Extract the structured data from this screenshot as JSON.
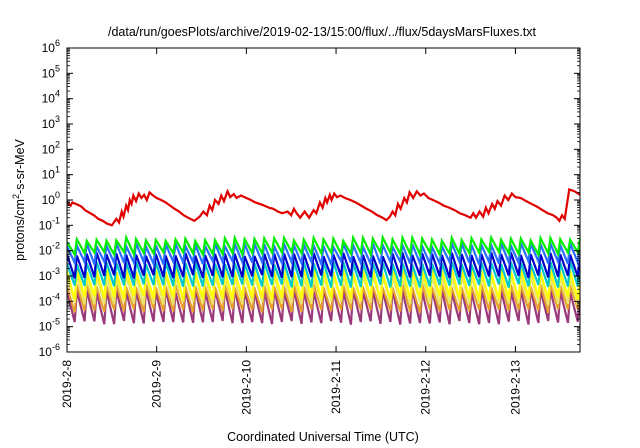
{
  "chart_data": {
    "type": "line",
    "title": "/data/run/goesPlots/archive/2019-02-13/15:00/flux/../flux/5daysMarsFluxes.txt",
    "xlabel": "Coordinated Universal Time (UTC)",
    "ylabel": "protons/cm²-s-sr-MeV",
    "ylabel_parts": {
      "base": "protons/cm",
      "sup": "2",
      "rest": "-s-sr-MeV"
    },
    "yscale": "log",
    "ylim": [
      1e-06,
      1000000.0
    ],
    "ytick_base": "10",
    "ytick_exponents": [
      "-6",
      "-5",
      "-4",
      "-3",
      "-2",
      "-1",
      "0",
      "1",
      "2",
      "3",
      "4",
      "5",
      "6"
    ],
    "x_unit": "days",
    "xlim": [
      0,
      5.72
    ],
    "xticks": [
      {
        "x": 0,
        "label": "2019-2-8"
      },
      {
        "x": 1,
        "label": "2019-2-9"
      },
      {
        "x": 2,
        "label": "2019-2-10"
      },
      {
        "x": 3,
        "label": "2019-2-11"
      },
      {
        "x": 4,
        "label": "2019-2-12"
      },
      {
        "x": 5,
        "label": "2019-2-13"
      }
    ],
    "grid": false,
    "series": [
      {
        "color": "#e00000",
        "width": 2.2,
        "x": [
          0,
          0.04,
          0.06,
          0.12,
          0.16,
          0.2,
          0.26,
          0.3,
          0.35,
          0.4,
          0.44,
          0.5,
          0.55,
          0.58,
          0.61,
          0.63,
          0.66,
          0.68,
          0.7,
          0.72,
          0.74,
          0.77,
          0.8,
          0.83,
          0.86,
          0.89,
          0.92,
          0.96,
          1.0,
          1.05,
          1.1,
          1.15,
          1.2,
          1.25,
          1.3,
          1.35,
          1.42,
          1.48,
          1.52,
          1.56,
          1.59,
          1.62,
          1.65,
          1.69,
          1.72,
          1.75,
          1.79,
          1.82,
          1.86,
          1.89,
          1.94,
          2.0,
          2.05,
          2.1,
          2.15,
          2.2,
          2.25,
          2.3,
          2.35,
          2.4,
          2.46,
          2.5,
          2.53,
          2.56,
          2.6,
          2.65,
          2.7,
          2.75,
          2.78,
          2.82,
          2.85,
          2.88,
          2.9,
          2.93,
          2.95,
          2.98,
          3.01,
          3.05,
          3.1,
          3.16,
          3.22,
          3.28,
          3.34,
          3.4,
          3.46,
          3.52,
          3.56,
          3.6,
          3.63,
          3.66,
          3.69,
          3.72,
          3.76,
          3.79,
          3.82,
          3.86,
          3.9,
          3.94,
          3.98,
          4.03,
          4.08,
          4.14,
          4.2,
          4.26,
          4.32,
          4.38,
          4.44,
          4.5,
          4.53,
          4.56,
          4.6,
          4.64,
          4.67,
          4.7,
          4.74,
          4.77,
          4.8,
          4.84,
          4.88,
          4.92,
          4.96,
          5.0,
          5.06,
          5.12,
          5.18,
          5.24,
          5.3,
          5.36,
          5.42,
          5.46,
          5.49,
          5.52,
          5.55,
          5.6,
          5.66,
          5.72
        ],
        "y": [
          0.8,
          0.6,
          0.8,
          0.65,
          0.55,
          0.4,
          0.3,
          0.25,
          0.18,
          0.15,
          0.12,
          0.1,
          0.18,
          0.13,
          0.35,
          0.22,
          0.6,
          0.4,
          1.0,
          0.7,
          1.5,
          0.9,
          1.8,
          1.2,
          1.6,
          1.0,
          2.0,
          1.5,
          1.2,
          1.0,
          0.8,
          0.6,
          0.45,
          0.35,
          0.25,
          0.2,
          0.15,
          0.22,
          0.35,
          0.25,
          0.6,
          0.4,
          1.0,
          0.7,
          1.5,
          0.9,
          2.2,
          1.3,
          1.7,
          1.2,
          1.5,
          1.2,
          1.0,
          0.8,
          0.7,
          0.6,
          0.5,
          0.45,
          0.35,
          0.3,
          0.35,
          0.25,
          0.45,
          0.3,
          0.2,
          0.35,
          0.2,
          0.4,
          0.3,
          0.8,
          0.5,
          1.2,
          0.8,
          1.6,
          1.0,
          1.8,
          1.3,
          1.5,
          1.2,
          1.0,
          0.8,
          0.6,
          0.45,
          0.35,
          0.25,
          0.2,
          0.16,
          0.22,
          0.35,
          0.25,
          0.7,
          0.45,
          1.2,
          0.8,
          2.0,
          1.2,
          2.2,
          1.5,
          1.8,
          1.2,
          1.0,
          0.8,
          0.6,
          0.5,
          0.4,
          0.3,
          0.25,
          0.2,
          0.3,
          0.2,
          0.35,
          0.22,
          0.5,
          0.3,
          0.7,
          0.45,
          0.9,
          0.6,
          1.5,
          1.0,
          1.8,
          1.3,
          1.2,
          0.9,
          0.7,
          0.55,
          0.4,
          0.3,
          0.25,
          0.2,
          0.15,
          0.25,
          0.18,
          2.6,
          2.2,
          1.6
        ]
      },
      {
        "color": "#00ee00",
        "width": 2.2,
        "cycles": 52,
        "start": 0.022,
        "peak_low": 0.024,
        "peak_high": 0.033,
        "trough_low": 0.007,
        "trough_high": 0.009
      },
      {
        "color": "#2a6fff",
        "width": 2.2,
        "cycles": 52,
        "start": 0.015,
        "peak_low": 0.014,
        "peak_high": 0.02,
        "trough_low": 0.0028,
        "trough_high": 0.0038
      },
      {
        "color": "#0000c8",
        "width": 2.2,
        "cycles": 52,
        "start": 0.007,
        "peak_low": 0.006,
        "peak_high": 0.0085,
        "trough_low": 0.0008,
        "trough_high": 0.0011
      },
      {
        "color": "#00c8c8",
        "width": 2.2,
        "cycles": 52,
        "start": 0.003,
        "peak_low": 0.0028,
        "peak_high": 0.0038,
        "trough_low": 0.00035,
        "trough_high": 0.00048
      },
      {
        "color": "#ffff00",
        "width": 2.2,
        "cycles": 52,
        "start": 0.0015,
        "peak_low": 0.0013,
        "peak_high": 0.0019,
        "trough_low": 0.00011,
        "trough_high": 0.00016
      },
      {
        "color": "#e6e66e",
        "width": 2.0,
        "cycles": 52,
        "start": 0.0009,
        "peak_low": 0.0008,
        "peak_high": 0.0011,
        "trough_low": 7e-05,
        "trough_high": 0.0001
      },
      {
        "color": "#e8a02a",
        "width": 2.0,
        "cycles": 52,
        "start": 0.0004,
        "peak_low": 0.00035,
        "peak_high": 0.0005,
        "trough_low": 3.5e-05,
        "trough_high": 5e-05
      },
      {
        "color": "#9a3a7a",
        "width": 2.2,
        "cycles": 52,
        "start": 0.00025,
        "peak_low": 0.00022,
        "peak_high": 0.0003,
        "trough_low": 1.2e-05,
        "trough_high": 1.7e-05
      }
    ]
  }
}
